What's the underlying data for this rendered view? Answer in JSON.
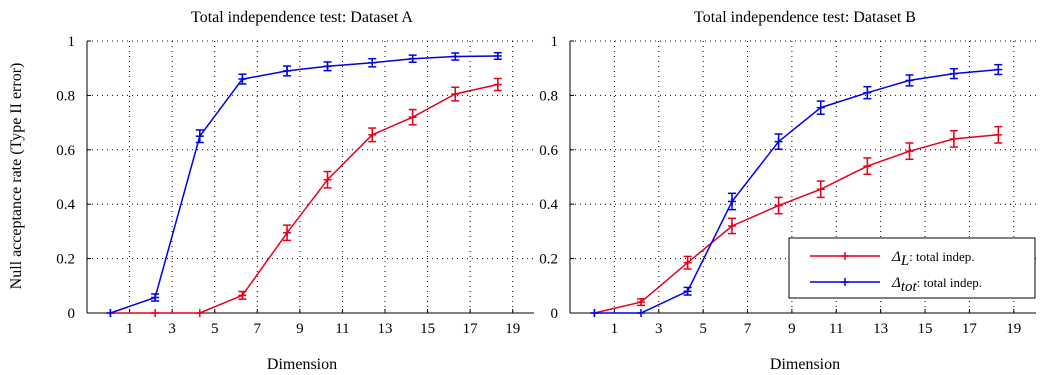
{
  "figure": {
    "ylabel": "Null acceptance rate (Type II error)"
  },
  "chart_data": [
    {
      "type": "line",
      "title": "Total independence test: Dataset A",
      "xlabel": "Dimension",
      "ylabel": "Null acceptance rate (Type II error)",
      "xlim": [
        -1,
        20
      ],
      "ylim": [
        0,
        1
      ],
      "xticks": [
        1,
        3,
        5,
        7,
        9,
        11,
        13,
        15,
        17,
        19
      ],
      "yticks": [
        0,
        0.2,
        0.4,
        0.6,
        0.8,
        1
      ],
      "ytick_labels": [
        "0",
        "0.2",
        "0.4",
        "0.6",
        "0.8",
        "1"
      ],
      "grid": true,
      "series": [
        {
          "color": "#e8001c",
          "x": [
            0.1,
            2.2,
            4.3,
            6.3,
            8.4,
            10.3,
            12.4,
            14.3,
            16.3,
            18.3
          ],
          "y": [
            0,
            0,
            0,
            0.065,
            0.295,
            0.49,
            0.655,
            0.72,
            0.805,
            0.84
          ],
          "err": [
            0,
            0,
            0,
            0.014,
            0.028,
            0.03,
            0.025,
            0.028,
            0.025,
            0.022
          ]
        },
        {
          "color": "#0000e8",
          "x": [
            0.1,
            2.2,
            4.3,
            6.3,
            8.4,
            10.3,
            12.4,
            14.3,
            16.3,
            18.3
          ],
          "y": [
            0,
            0.057,
            0.65,
            0.86,
            0.89,
            0.907,
            0.92,
            0.935,
            0.943,
            0.945
          ],
          "err": [
            0,
            0.013,
            0.023,
            0.018,
            0.018,
            0.016,
            0.015,
            0.013,
            0.013,
            0.012
          ]
        }
      ]
    },
    {
      "type": "line",
      "title": "Total independence test: Dataset B",
      "xlabel": "Dimension",
      "xlim": [
        -1,
        20
      ],
      "ylim": [
        0,
        1
      ],
      "xticks": [
        1,
        3,
        5,
        7,
        9,
        11,
        13,
        15,
        17,
        19
      ],
      "yticks": [
        0,
        0.2,
        0.4,
        0.6,
        0.8,
        1
      ],
      "ytick_labels": [
        "0",
        "0.2",
        "0.4",
        "0.6",
        "0.8",
        "1"
      ],
      "grid": true,
      "legend": {
        "position": "lower-right",
        "entries": [
          {
            "symbol": "ΔL",
            "symbol_base": "Δ",
            "symbol_sub": "L",
            "text": ": total indep.",
            "color": "#e8001c"
          },
          {
            "symbol": "Δtot",
            "symbol_base": "Δ",
            "symbol_sub": "tot",
            "text": ": total indep.",
            "color": "#0000e8"
          }
        ]
      },
      "series": [
        {
          "name": "ΔL: total indep.",
          "color": "#e8001c",
          "x": [
            0.1,
            2.2,
            4.3,
            6.3,
            8.4,
            10.3,
            12.4,
            14.3,
            16.3,
            18.3
          ],
          "y": [
            0,
            0.04,
            0.185,
            0.32,
            0.395,
            0.455,
            0.54,
            0.595,
            0.64,
            0.655
          ],
          "err": [
            0,
            0.012,
            0.023,
            0.028,
            0.03,
            0.03,
            0.03,
            0.03,
            0.03,
            0.03
          ]
        },
        {
          "name": "Δtot: total indep.",
          "color": "#0000e8",
          "x": [
            0.1,
            2.2,
            4.3,
            6.3,
            8.4,
            10.3,
            12.4,
            14.3,
            16.3,
            18.3
          ],
          "y": [
            0,
            0,
            0.08,
            0.41,
            0.63,
            0.755,
            0.81,
            0.855,
            0.88,
            0.895
          ],
          "err": [
            0,
            0,
            0.014,
            0.03,
            0.028,
            0.024,
            0.022,
            0.02,
            0.018,
            0.018
          ]
        }
      ]
    }
  ]
}
